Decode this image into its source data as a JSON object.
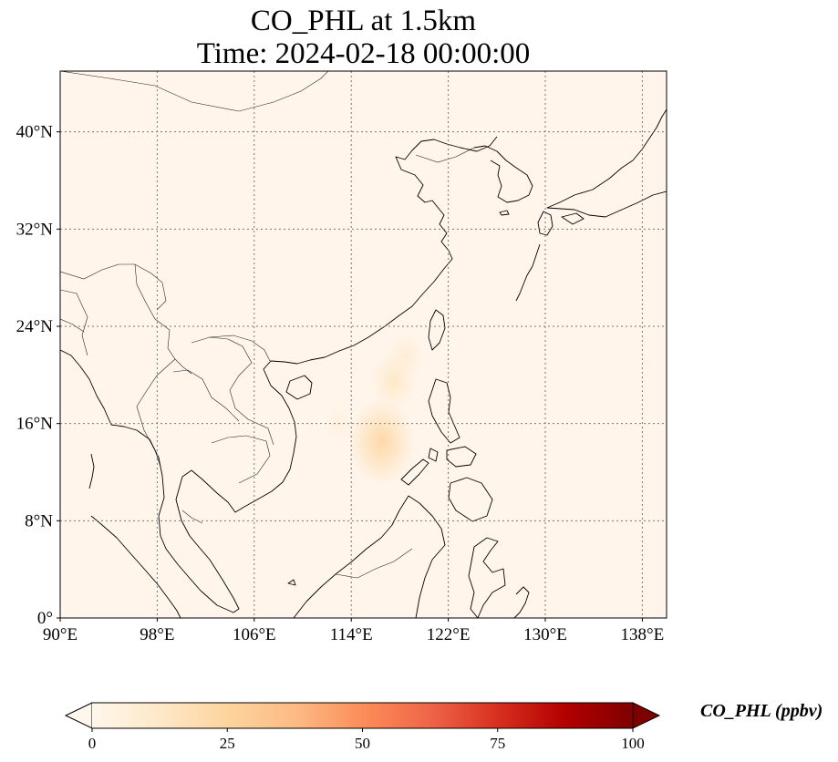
{
  "title": {
    "line1": "CO_PHL at 1.5km",
    "line2": "Time: 2024-02-18 00:00:00"
  },
  "map": {
    "projection": "PlateCarree",
    "lon_range": [
      90,
      140
    ],
    "lat_range": [
      0,
      45
    ],
    "gridlines": "dotted",
    "lon_ticks": [
      {
        "value": 90,
        "label": "90°E"
      },
      {
        "value": 98,
        "label": "98°E"
      },
      {
        "value": 106,
        "label": "106°E"
      },
      {
        "value": 114,
        "label": "114°E"
      },
      {
        "value": 122,
        "label": "122°E"
      },
      {
        "value": 130,
        "label": "130°E"
      },
      {
        "value": 138,
        "label": "138°E"
      }
    ],
    "lat_ticks": [
      {
        "value": 0,
        "label": "0°"
      },
      {
        "value": 8,
        "label": "8°N"
      },
      {
        "value": 16,
        "label": "16°N"
      },
      {
        "value": 24,
        "label": "24°N"
      },
      {
        "value": 32,
        "label": "32°N"
      },
      {
        "value": 40,
        "label": "40°N"
      }
    ],
    "field_background_color": "#fff5eb",
    "plumes": [
      {
        "lon": 117.5,
        "lat": 19.5,
        "value": 12
      },
      {
        "lon": 116.5,
        "lat": 14.5,
        "value": 22
      },
      {
        "lon": 118.5,
        "lat": 21.5,
        "value": 8
      },
      {
        "lon": 113.0,
        "lat": 16.0,
        "value": 5
      }
    ]
  },
  "colorbar": {
    "colormap": "OrRd",
    "label": "CO_PHL (ppbv)",
    "min": 0,
    "max": 100,
    "extend": "both",
    "ticks": [
      {
        "value": 0,
        "label": "0"
      },
      {
        "value": 25,
        "label": "25"
      },
      {
        "value": 50,
        "label": "50"
      },
      {
        "value": 75,
        "label": "75"
      },
      {
        "value": 100,
        "label": "100"
      }
    ],
    "colors": [
      "#fff7ec",
      "#fee8c8",
      "#fdd49e",
      "#fdbb84",
      "#fc8d59",
      "#ef6548",
      "#d7301f",
      "#b30000",
      "#7f0000"
    ]
  }
}
